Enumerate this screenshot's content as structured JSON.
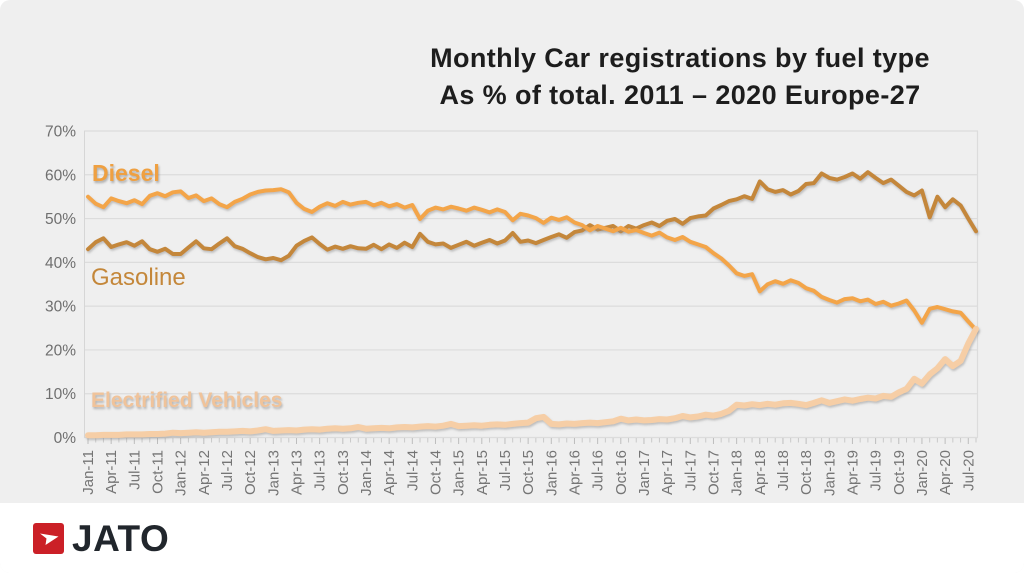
{
  "page": {
    "background": "#efefef",
    "footer_background": "#ffffff"
  },
  "title": {
    "line1": "Monthly Car registrations by fuel type",
    "line2": "As % of total. 2011 – 2020 Europe-27",
    "color": "#1d1d1d"
  },
  "logo": {
    "text": "JATO",
    "box_color": "#cb2027",
    "text_color": "#21262c",
    "mark": "jato-arrow-icon"
  },
  "chart_data": {
    "type": "line",
    "title": "Monthly Car registrations by fuel type",
    "subtitle": "As % of total. 2011 – 2020 Europe-27",
    "xlabel": "",
    "ylabel": "",
    "ylim": [
      0,
      70
    ],
    "grid": true,
    "legend_position": "labels-on-chart",
    "x_start": "Jan-11",
    "x_end": "Aug-20",
    "months_per_point": 1,
    "y_tick_labels": [
      "0%",
      "10%",
      "20%",
      "30%",
      "40%",
      "50%",
      "60%",
      "70%"
    ],
    "x_tick_labels": [
      "Jan-11",
      "Apr-11",
      "Jul-11",
      "Oct-11",
      "Jan-12",
      "Apr-12",
      "Jul-12",
      "Oct-12",
      "Jan-13",
      "Apr-13",
      "Jul-13",
      "Oct-13",
      "Jan-14",
      "Apr-14",
      "Jul-14",
      "Oct-14",
      "Jan-15",
      "Apr-15",
      "Jul-15",
      "Oct-15",
      "Jan-16",
      "Apr-16",
      "Jul-16",
      "Oct-16",
      "Jan-17",
      "Apr-17",
      "Jul-17",
      "Oct-17",
      "Jan-18",
      "Apr-18",
      "Jul-18",
      "Oct-18",
      "Jan-19",
      "Apr-19",
      "Jul-19",
      "Oct-19",
      "Jan-20",
      "Apr-20",
      "Jul-20"
    ],
    "x_ticks_every_n_months": 3,
    "axis_text_color": "#6f6f6f",
    "grid_color": "#dcdcdc",
    "tick_color": "#c9c9c9",
    "series": [
      {
        "name": "Gasoline",
        "color": "#c4873a",
        "label_color": "#c4873a",
        "line_width": 4,
        "values": [
          43.0,
          44.6,
          45.5,
          43.5,
          44.1,
          44.6,
          43.8,
          44.8,
          43.0,
          42.4,
          43.1,
          41.9,
          41.9,
          43.4,
          44.8,
          43.2,
          43.0,
          44.3,
          45.5,
          43.7,
          43.1,
          42.1,
          41.2,
          40.7,
          41.0,
          40.5,
          41.5,
          43.8,
          44.9,
          45.7,
          44.2,
          42.9,
          43.6,
          43.1,
          43.7,
          43.2,
          43.1,
          44.0,
          43.0,
          44.1,
          43.3,
          44.5,
          43.5,
          46.5,
          44.7,
          44.1,
          44.3,
          43.3,
          44.0,
          44.7,
          43.8,
          44.5,
          45.1,
          44.3,
          45.0,
          46.7,
          44.7,
          45.0,
          44.4,
          45.1,
          45.8,
          46.4,
          45.6,
          46.9,
          47.3,
          48.5,
          47.5,
          47.9,
          48.3,
          47.1,
          48.3,
          47.7,
          48.5,
          49.1,
          48.3,
          49.5,
          49.9,
          48.8,
          50.1,
          50.5,
          50.7,
          52.3,
          53.1,
          54.0,
          54.4,
          55.1,
          54.5,
          58.5,
          56.7,
          56.1,
          56.5,
          55.5,
          56.3,
          57.9,
          58.1,
          60.3,
          59.3,
          58.9,
          59.5,
          60.3,
          59.1,
          60.6,
          59.3,
          58.1,
          58.9,
          57.5,
          56.1,
          55.3,
          56.4,
          50.3,
          55.0,
          52.6,
          54.4,
          53.0,
          50.0,
          47.1
        ]
      },
      {
        "name": "Diesel",
        "color": "#f3a54a",
        "label_color": "#efa041",
        "line_width": 4,
        "values": [
          55.0,
          53.4,
          52.6,
          54.6,
          54.0,
          53.5,
          54.2,
          53.3,
          55.2,
          55.8,
          55.1,
          56.0,
          56.2,
          54.7,
          55.3,
          54.0,
          54.6,
          53.3,
          52.6,
          53.8,
          54.5,
          55.5,
          56.1,
          56.4,
          56.5,
          56.7,
          56.0,
          53.6,
          52.2,
          51.5,
          52.7,
          53.5,
          52.9,
          53.8,
          53.2,
          53.6,
          53.8,
          53.0,
          53.6,
          52.8,
          53.3,
          52.5,
          53.1,
          49.9,
          51.8,
          52.5,
          52.1,
          52.7,
          52.3,
          51.8,
          52.5,
          52.0,
          51.4,
          52.1,
          51.5,
          49.6,
          51.1,
          50.7,
          50.1,
          49.0,
          50.2,
          49.7,
          50.3,
          49.1,
          48.5,
          47.3,
          48.3,
          47.7,
          47.1,
          47.9,
          47.0,
          47.4,
          46.7,
          46.1,
          46.8,
          45.7,
          45.1,
          45.8,
          44.7,
          44.1,
          43.5,
          42.1,
          40.9,
          39.3,
          37.5,
          36.9,
          37.3,
          33.4,
          35.0,
          35.7,
          35.1,
          35.9,
          35.3,
          34.1,
          33.5,
          32.1,
          31.4,
          30.8,
          31.6,
          31.8,
          31.1,
          31.5,
          30.5,
          31.0,
          30.1,
          30.6,
          31.3,
          29.0,
          26.2,
          29.4,
          29.8,
          29.3,
          28.8,
          28.5,
          26.5,
          24.6
        ]
      },
      {
        "name": "Electrified Vehicles",
        "color": "#f6cea6",
        "label_color": "#f0c39a",
        "line_width": 6,
        "values": [
          0.5,
          0.5,
          0.6,
          0.6,
          0.6,
          0.7,
          0.7,
          0.7,
          0.8,
          0.8,
          0.9,
          1.1,
          1.0,
          1.1,
          1.2,
          1.1,
          1.2,
          1.3,
          1.3,
          1.4,
          1.5,
          1.4,
          1.6,
          1.9,
          1.5,
          1.6,
          1.7,
          1.6,
          1.8,
          1.9,
          1.8,
          2.0,
          2.1,
          2.0,
          2.1,
          2.4,
          2.0,
          2.1,
          2.2,
          2.1,
          2.3,
          2.4,
          2.3,
          2.5,
          2.6,
          2.5,
          2.7,
          3.1,
          2.6,
          2.7,
          2.8,
          2.7,
          2.9,
          3.0,
          2.9,
          3.1,
          3.3,
          3.4,
          4.4,
          4.7,
          3.1,
          3.0,
          3.2,
          3.1,
          3.3,
          3.4,
          3.3,
          3.5,
          3.7,
          4.3,
          3.9,
          4.1,
          3.9,
          4.0,
          4.2,
          4.1,
          4.4,
          4.9,
          4.6,
          4.8,
          5.2,
          5.0,
          5.4,
          6.1,
          7.5,
          7.3,
          7.6,
          7.4,
          7.7,
          7.5,
          7.8,
          7.9,
          7.7,
          7.4,
          7.9,
          8.5,
          7.9,
          8.3,
          8.7,
          8.4,
          8.8,
          9.1,
          8.9,
          9.5,
          9.3,
          10.3,
          11.1,
          13.4,
          12.3,
          14.4,
          15.8,
          17.9,
          16.3,
          17.5,
          21.5,
          24.8
        ]
      }
    ]
  }
}
